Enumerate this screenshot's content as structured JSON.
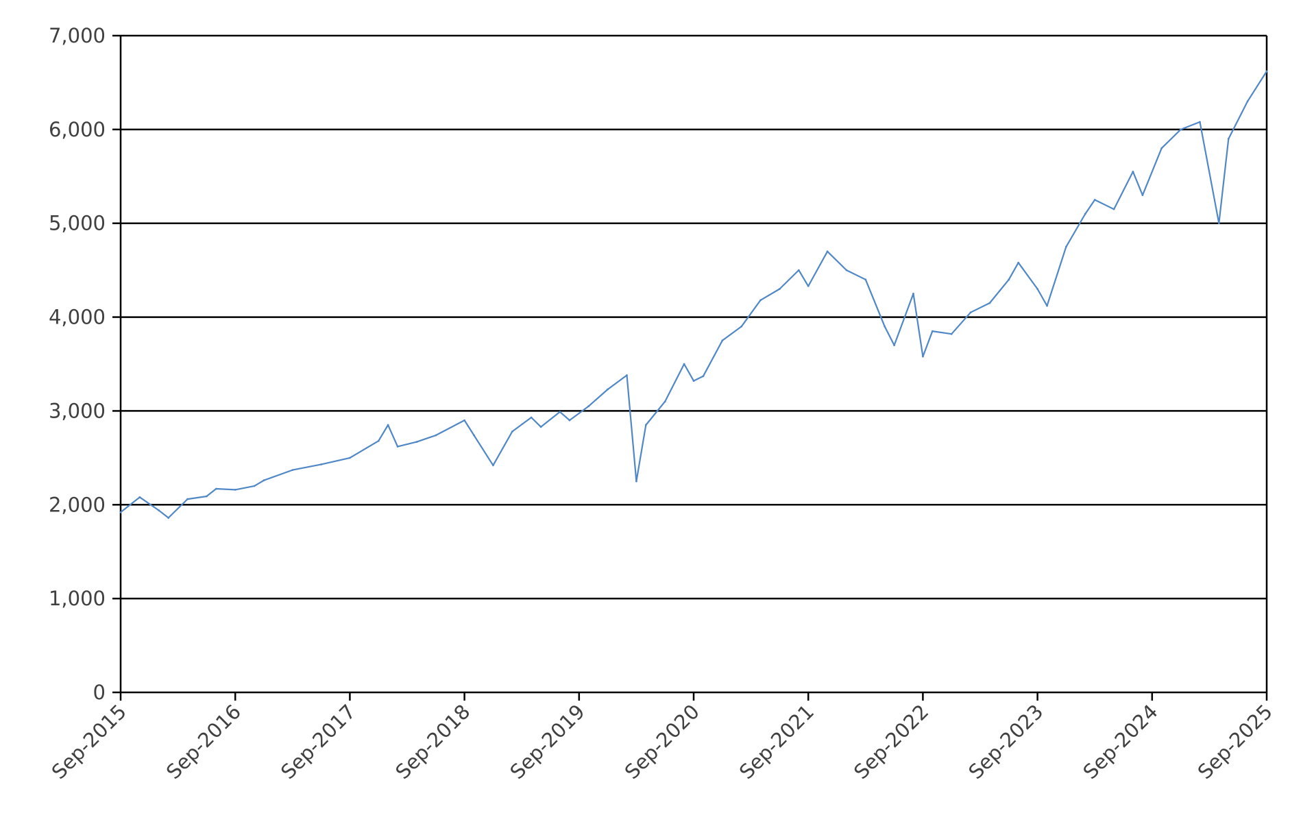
{
  "chart_data": {
    "type": "line",
    "title": "",
    "xlabel": "",
    "ylabel": "",
    "ylim": [
      0,
      7000
    ],
    "xlim": [
      "2015-09",
      "2025-09"
    ],
    "grid": true,
    "legend": "none",
    "series_color": "#4f87c7",
    "yticks": [
      0,
      1000,
      2000,
      3000,
      4000,
      5000,
      6000,
      7000
    ],
    "ytick_labels": [
      "0",
      "1,000",
      "2,000",
      "3,000",
      "4,000",
      "5,000",
      "6,000",
      "7,000"
    ],
    "xticks": [
      "2015-09",
      "2016-09",
      "2017-09",
      "2018-09",
      "2019-09",
      "2020-09",
      "2021-09",
      "2022-09",
      "2023-09",
      "2024-09",
      "2025-09"
    ],
    "xtick_labels": [
      "Sep-2015",
      "Sep-2016",
      "Sep-2017",
      "Sep-2018",
      "Sep-2019",
      "Sep-2020",
      "Sep-2021",
      "Sep-2022",
      "Sep-2023",
      "Sep-2024",
      "Sep-2025"
    ],
    "series": [
      {
        "x": [
          "2015-09",
          "2015-11",
          "2016-01",
          "2016-02",
          "2016-04",
          "2016-06",
          "2016-07",
          "2016-09",
          "2016-11",
          "2016-12",
          "2017-03",
          "2017-06",
          "2017-09",
          "2017-12",
          "2018-01",
          "2018-02",
          "2018-04",
          "2018-06",
          "2018-09",
          "2018-10",
          "2018-12",
          "2019-02",
          "2019-04",
          "2019-05",
          "2019-07",
          "2019-08",
          "2019-10",
          "2019-12",
          "2020-02",
          "2020-03",
          "2020-04",
          "2020-06",
          "2020-08",
          "2020-09",
          "2020-10",
          "2020-12",
          "2021-02",
          "2021-04",
          "2021-06",
          "2021-08",
          "2021-09",
          "2021-11",
          "2022-01",
          "2022-03",
          "2022-05",
          "2022-06",
          "2022-08",
          "2022-09",
          "2022-10",
          "2022-12",
          "2023-02",
          "2023-04",
          "2023-06",
          "2023-07",
          "2023-09",
          "2023-10",
          "2023-12",
          "2024-02",
          "2024-03",
          "2024-05",
          "2024-07",
          "2024-08",
          "2024-10",
          "2024-12",
          "2025-02",
          "2025-04",
          "2025-05",
          "2025-07",
          "2025-09"
        ],
        "y": [
          1920,
          2080,
          1940,
          1860,
          2060,
          2090,
          2170,
          2160,
          2200,
          2260,
          2370,
          2430,
          2500,
          2680,
          2850,
          2620,
          2670,
          2740,
          2900,
          2740,
          2420,
          2780,
          2930,
          2830,
          2990,
          2900,
          3050,
          3230,
          3380,
          2250,
          2850,
          3100,
          3500,
          3320,
          3370,
          3750,
          3900,
          4180,
          4300,
          4500,
          4330,
          4700,
          4500,
          4400,
          3900,
          3700,
          4250,
          3580,
          3850,
          3820,
          4050,
          4150,
          4400,
          4580,
          4300,
          4120,
          4750,
          5100,
          5250,
          5150,
          5550,
          5300,
          5800,
          6000,
          6080,
          5000,
          5900,
          6300,
          6620
        ]
      }
    ]
  }
}
